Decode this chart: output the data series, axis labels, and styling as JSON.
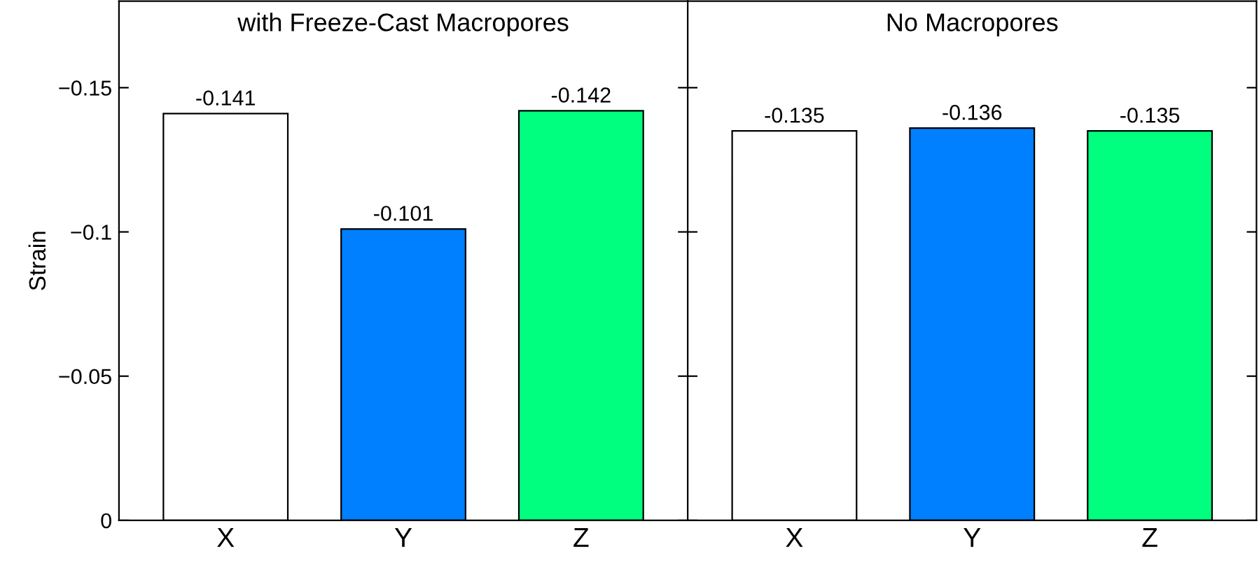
{
  "chart_data": [
    {
      "type": "bar",
      "title": "with Freeze-Cast Macropores",
      "ylabel": "Strain",
      "categories": [
        "X",
        "Y",
        "Z"
      ],
      "values": [
        -0.141,
        -0.101,
        -0.142
      ],
      "colors": [
        "#ffffff",
        "#007fff",
        "#00ff7f"
      ],
      "ylim": [
        0,
        -0.18
      ],
      "yticks": [
        {
          "value": -0.15,
          "label": "−0.15"
        },
        {
          "value": -0.1,
          "label": "−0.1"
        },
        {
          "value": -0.05,
          "label": "−0.05"
        },
        0
      ],
      "data_labels": true,
      "grid": false,
      "legend": false
    },
    {
      "type": "bar",
      "title": "No Macropores",
      "categories": [
        "X",
        "Y",
        "Z"
      ],
      "values": [
        -0.135,
        -0.136,
        -0.135
      ],
      "colors": [
        "#ffffff",
        "#007fff",
        "#00ff7f"
      ],
      "ylim": [
        0,
        -0.18
      ],
      "yticks": [
        {
          "value": -0.15,
          "label": null
        },
        {
          "value": -0.1,
          "label": null
        },
        {
          "value": -0.05,
          "label": null
        },
        {
          "value": 0,
          "label": null
        }
      ],
      "data_labels": true,
      "tick_labels": "x",
      "grid": false,
      "legend": false
    }
  ]
}
